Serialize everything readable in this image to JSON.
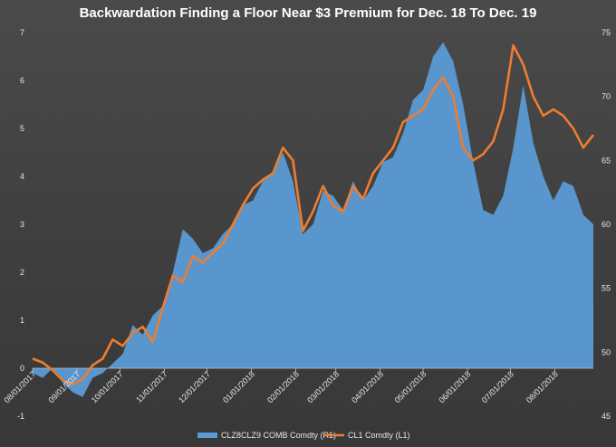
{
  "chart_data": {
    "type": "area",
    "title": "Backwardation Finding a Floor Near $3 Premium for Dec. 18 To Dec. 19",
    "x": [
      "08/01/2017",
      "08/08/2017",
      "08/15/2017",
      "08/22/2017",
      "08/29/2017",
      "09/05/2017",
      "09/12/2017",
      "09/19/2017",
      "09/26/2017",
      "10/03/2017",
      "10/10/2017",
      "10/17/2017",
      "10/24/2017",
      "10/31/2017",
      "11/07/2017",
      "11/14/2017",
      "11/21/2017",
      "11/28/2017",
      "12/05/2017",
      "12/12/2017",
      "12/19/2017",
      "12/26/2017",
      "01/02/2018",
      "01/09/2018",
      "01/16/2018",
      "01/23/2018",
      "01/30/2018",
      "02/06/2018",
      "02/13/2018",
      "02/20/2018",
      "02/27/2018",
      "03/06/2018",
      "03/13/2018",
      "03/20/2018",
      "03/27/2018",
      "04/03/2018",
      "04/10/2018",
      "04/17/2018",
      "04/24/2018",
      "05/01/2018",
      "05/08/2018",
      "05/15/2018",
      "05/22/2018",
      "05/29/2018",
      "06/05/2018",
      "06/12/2018",
      "06/19/2018",
      "06/26/2018",
      "07/03/2018",
      "07/10/2018",
      "07/17/2018",
      "07/24/2018",
      "07/31/2018",
      "08/07/2018",
      "08/14/2018",
      "08/21/2018",
      "08/28/2018"
    ],
    "x_tick_labels": [
      "08/01/2017",
      "09/01/2017",
      "10/01/2017",
      "11/01/2017",
      "12/01/2017",
      "01/01/2018",
      "02/01/2018",
      "03/01/2018",
      "04/01/2018",
      "05/01/2018",
      "06/01/2018",
      "07/01/2018",
      "08/01/2018"
    ],
    "y_left": {
      "range": [
        -1,
        7
      ],
      "ticks": [
        -1,
        0,
        1,
        2,
        3,
        4,
        5,
        6,
        7
      ]
    },
    "y_right": {
      "range": [
        45,
        75
      ],
      "ticks": [
        45,
        50,
        55,
        60,
        65,
        70,
        75
      ]
    },
    "series": [
      {
        "name": "CLZ8CLZ9 COMB Comdty  (R1)",
        "type": "area",
        "axis": "left",
        "color": "#5b9bd5",
        "values": [
          -0.1,
          -0.2,
          0.0,
          -0.3,
          -0.5,
          -0.6,
          -0.2,
          -0.1,
          0.1,
          0.3,
          0.9,
          0.7,
          1.1,
          1.3,
          2.0,
          2.9,
          2.7,
          2.4,
          2.5,
          2.8,
          3.0,
          3.4,
          3.5,
          3.9,
          4.1,
          4.5,
          3.9,
          2.8,
          3.0,
          3.7,
          3.6,
          3.3,
          3.9,
          3.5,
          3.8,
          4.3,
          4.4,
          4.9,
          5.6,
          5.8,
          6.5,
          6.8,
          6.4,
          5.5,
          4.3,
          3.3,
          3.2,
          3.6,
          4.6,
          5.9,
          4.7,
          4.0,
          3.5,
          3.9,
          3.8,
          3.2,
          3.0
        ]
      },
      {
        "name": "CL1 Comdty  (L1)",
        "type": "line",
        "axis": "right",
        "color": "#ed7d31",
        "values": [
          49.5,
          49.2,
          48.6,
          47.8,
          47.5,
          47.9,
          49.0,
          49.5,
          51.0,
          50.5,
          51.5,
          52.0,
          50.8,
          53.5,
          56.0,
          55.5,
          57.5,
          57.0,
          57.8,
          58.5,
          60.0,
          61.5,
          62.8,
          63.5,
          64.0,
          66.0,
          65.0,
          59.5,
          61.0,
          63.0,
          61.5,
          61.0,
          63.0,
          62.0,
          64.0,
          65.0,
          66.0,
          68.0,
          68.5,
          69.0,
          70.5,
          71.5,
          70.0,
          66.0,
          65.0,
          65.5,
          66.5,
          69.0,
          74.0,
          72.5,
          70.0,
          68.5,
          69.0,
          68.5,
          67.5,
          66.0,
          67.0
        ]
      }
    ],
    "legend": {
      "placement": "bottom"
    },
    "grid": false
  }
}
